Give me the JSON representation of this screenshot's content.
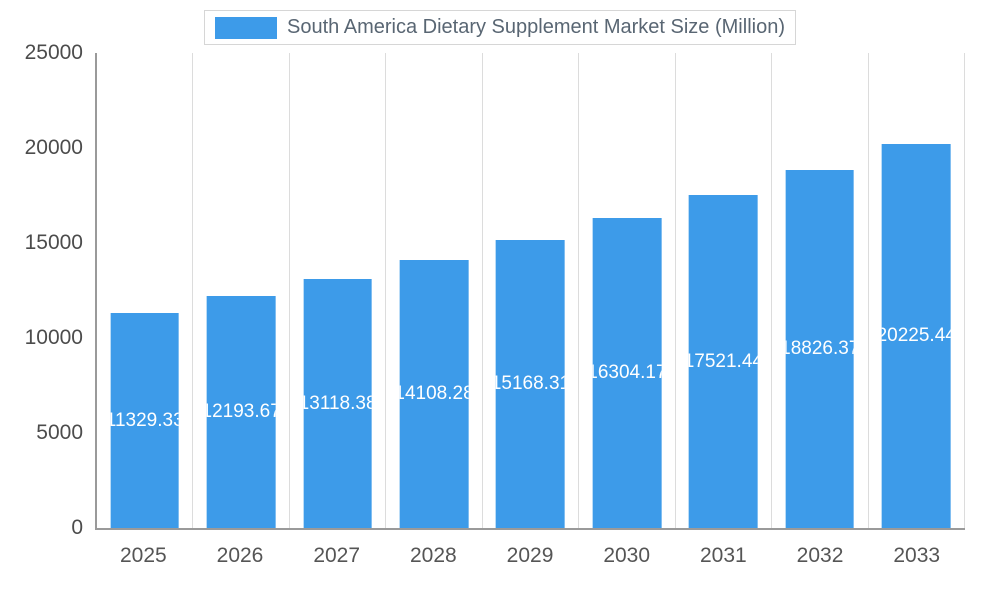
{
  "chart": {
    "legend_label": "South America Dietary Supplement Market Size (Million)",
    "colors": {
      "bar": "#3d9be9",
      "gridline": "#dcdcdc",
      "axis_line": "#9a9a9a",
      "axis_text": "#4c4c4c",
      "title_text": "#596673",
      "value_label_text": "#ffffff",
      "background": "#ffffff"
    }
  },
  "chart_data": {
    "type": "bar",
    "title": "South America Dietary Supplement Market Size (Million)",
    "categories": [
      "2025",
      "2026",
      "2027",
      "2028",
      "2029",
      "2030",
      "2031",
      "2032",
      "2033"
    ],
    "values": [
      11329.33,
      12193.67,
      13118.38,
      14108.28,
      15168.31,
      16304.17,
      17521.44,
      18826.37,
      20225.44
    ],
    "value_labels": [
      "11329.33",
      "12193.67",
      "13118.38",
      "14108.28",
      "15168.31",
      "16304.17",
      "17521.44",
      "18826.37",
      "20225.44"
    ],
    "xlabel": "",
    "ylabel": "",
    "ylim": [
      0,
      25000
    ],
    "yticks": [
      0,
      5000,
      10000,
      15000,
      20000,
      25000
    ],
    "grid": "vertical-only",
    "legend_position": "top-center",
    "value_label_position": "inside-center"
  }
}
